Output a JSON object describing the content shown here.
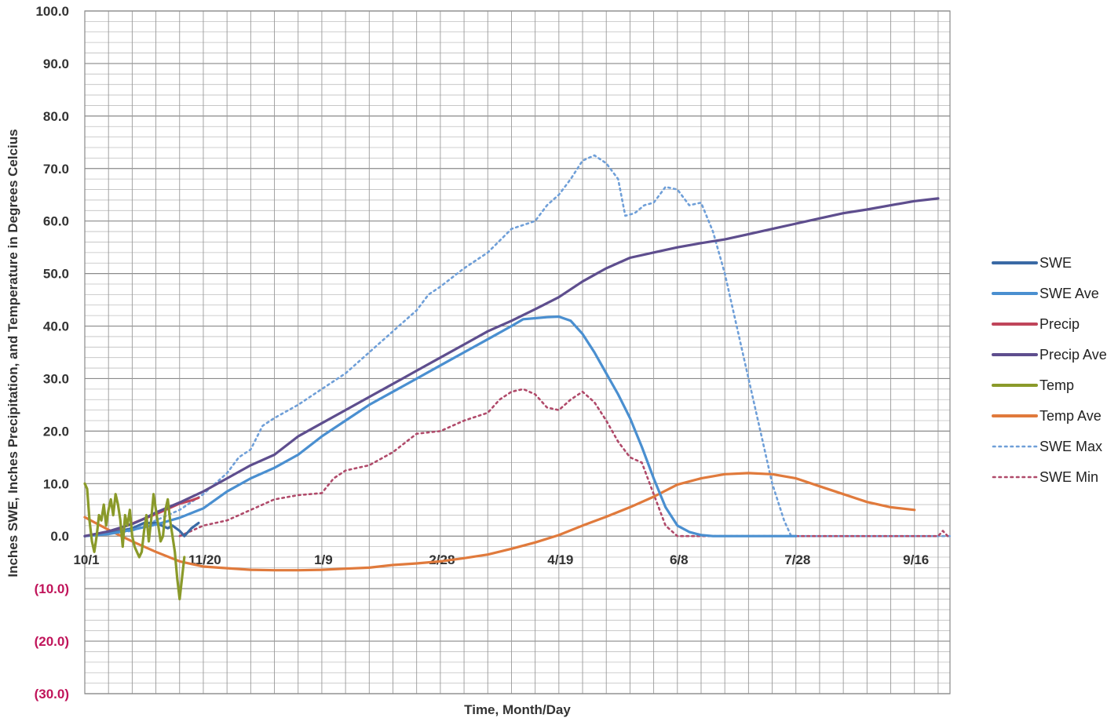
{
  "chart_data": {
    "type": "line",
    "title": "",
    "xlabel": "Time, Month/Day",
    "ylabel": "Inches SWE, Inches Precipitation, and Temperature in Degrees Celcius",
    "ylim": [
      -30,
      100
    ],
    "xlim_days": [
      0,
      365
    ],
    "grid": true,
    "legend_position": "right",
    "y_ticks": [
      {
        "value": 100,
        "label": "100.0"
      },
      {
        "value": 90,
        "label": "90.0"
      },
      {
        "value": 80,
        "label": "80.0"
      },
      {
        "value": 70,
        "label": "70.0"
      },
      {
        "value": 60,
        "label": "60.0"
      },
      {
        "value": 50,
        "label": "50.0"
      },
      {
        "value": 40,
        "label": "40.0"
      },
      {
        "value": 30,
        "label": "30.0"
      },
      {
        "value": 20,
        "label": "20.0"
      },
      {
        "value": 10,
        "label": "10.0"
      },
      {
        "value": 0,
        "label": "0.0"
      },
      {
        "value": -10,
        "label": "(10.0)"
      },
      {
        "value": -20,
        "label": "(20.0)"
      },
      {
        "value": -30,
        "label": "(30.0)"
      }
    ],
    "x_ticks": [
      {
        "day": 0,
        "label": "10/1"
      },
      {
        "day": 50,
        "label": "11/20"
      },
      {
        "day": 100,
        "label": "1/9"
      },
      {
        "day": 150,
        "label": "2/28"
      },
      {
        "day": 200,
        "label": "4/19"
      },
      {
        "day": 250,
        "label": "6/8"
      },
      {
        "day": 300,
        "label": "7/28"
      },
      {
        "day": 350,
        "label": "9/16"
      }
    ],
    "series": [
      {
        "name": "SWE",
        "color": "#3a6aa5",
        "dash": "solid",
        "points": [
          [
            0,
            0
          ],
          [
            5,
            0.3
          ],
          [
            10,
            0.5
          ],
          [
            15,
            1
          ],
          [
            20,
            1.5
          ],
          [
            25,
            2.5
          ],
          [
            30,
            2.5
          ],
          [
            35,
            1.5
          ],
          [
            37,
            2
          ],
          [
            40,
            1
          ],
          [
            42,
            0
          ],
          [
            45,
            1.5
          ],
          [
            48,
            2.5
          ]
        ]
      },
      {
        "name": "SWE Ave",
        "color": "#4a8fd0",
        "dash": "solid",
        "points": [
          [
            0,
            0
          ],
          [
            10,
            0.4
          ],
          [
            20,
            1.2
          ],
          [
            30,
            2.2
          ],
          [
            40,
            3.5
          ],
          [
            50,
            5.3
          ],
          [
            60,
            8.5
          ],
          [
            70,
            11
          ],
          [
            80,
            13
          ],
          [
            90,
            15.5
          ],
          [
            100,
            19
          ],
          [
            110,
            22
          ],
          [
            120,
            25
          ],
          [
            130,
            27.5
          ],
          [
            140,
            30
          ],
          [
            150,
            32.5
          ],
          [
            160,
            35
          ],
          [
            170,
            37.5
          ],
          [
            180,
            40
          ],
          [
            185,
            41.3
          ],
          [
            190,
            41.5
          ],
          [
            195,
            41.7
          ],
          [
            200,
            41.8
          ],
          [
            205,
            41
          ],
          [
            210,
            38.5
          ],
          [
            215,
            35
          ],
          [
            220,
            31
          ],
          [
            225,
            27
          ],
          [
            230,
            22.5
          ],
          [
            235,
            17
          ],
          [
            240,
            11
          ],
          [
            245,
            5.5
          ],
          [
            250,
            2
          ],
          [
            255,
            0.8
          ],
          [
            260,
            0.2
          ],
          [
            265,
            0
          ],
          [
            300,
            0
          ]
        ],
        "x_offset": 0
      },
      {
        "name": "Precip",
        "color": "#c0455a",
        "dash": "solid",
        "points": [
          [
            0,
            0
          ],
          [
            5,
            0.4
          ],
          [
            10,
            0.9
          ],
          [
            15,
            1.5
          ],
          [
            20,
            2.4
          ],
          [
            25,
            3.3
          ],
          [
            30,
            4.2
          ],
          [
            35,
            5.2
          ],
          [
            40,
            6.2
          ],
          [
            45,
            6.8
          ],
          [
            48,
            7.3
          ]
        ]
      },
      {
        "name": "Precip Ave",
        "color": "#5e4e8e",
        "dash": "solid",
        "points": [
          [
            0,
            0
          ],
          [
            10,
            0.9
          ],
          [
            20,
            2.3
          ],
          [
            25,
            3.3
          ],
          [
            30,
            4.5
          ],
          [
            40,
            6.4
          ],
          [
            50,
            8.5
          ],
          [
            60,
            11
          ],
          [
            70,
            13.5
          ],
          [
            80,
            15.5
          ],
          [
            90,
            19
          ],
          [
            100,
            21.5
          ],
          [
            110,
            24
          ],
          [
            120,
            26.5
          ],
          [
            130,
            29
          ],
          [
            140,
            31.5
          ],
          [
            150,
            34
          ],
          [
            160,
            36.5
          ],
          [
            170,
            39
          ],
          [
            180,
            41
          ],
          [
            190,
            43.2
          ],
          [
            200,
            45.5
          ],
          [
            210,
            48.5
          ],
          [
            220,
            51
          ],
          [
            230,
            53
          ],
          [
            240,
            54
          ],
          [
            250,
            55
          ],
          [
            260,
            55.8
          ],
          [
            270,
            56.5
          ],
          [
            280,
            57.5
          ],
          [
            290,
            58.5
          ],
          [
            300,
            59.5
          ],
          [
            310,
            60.5
          ],
          [
            320,
            61.5
          ],
          [
            330,
            62.2
          ],
          [
            340,
            63
          ],
          [
            350,
            63.8
          ],
          [
            360,
            64.3
          ]
        ]
      },
      {
        "name": "Temp",
        "color": "#8a9a2a",
        "dash": "solid",
        "points": [
          [
            0,
            10
          ],
          [
            1,
            9
          ],
          [
            2,
            3
          ],
          [
            3,
            -1
          ],
          [
            4,
            -3
          ],
          [
            5,
            0
          ],
          [
            6,
            4
          ],
          [
            7,
            3
          ],
          [
            8,
            6
          ],
          [
            9,
            2
          ],
          [
            10,
            5
          ],
          [
            11,
            7
          ],
          [
            12,
            4
          ],
          [
            13,
            8
          ],
          [
            14,
            6
          ],
          [
            15,
            3
          ],
          [
            16,
            -2
          ],
          [
            17,
            4
          ],
          [
            18,
            2
          ],
          [
            19,
            5
          ],
          [
            20,
            0
          ],
          [
            21,
            -2
          ],
          [
            22,
            -3
          ],
          [
            23,
            -4
          ],
          [
            24,
            -3
          ],
          [
            25,
            1
          ],
          [
            26,
            4
          ],
          [
            27,
            -1
          ],
          [
            28,
            3
          ],
          [
            29,
            8
          ],
          [
            30,
            5
          ],
          [
            31,
            2
          ],
          [
            32,
            -1
          ],
          [
            33,
            0
          ],
          [
            34,
            5
          ],
          [
            35,
            7
          ],
          [
            36,
            3
          ],
          [
            37,
            0
          ],
          [
            38,
            -3
          ],
          [
            39,
            -8
          ],
          [
            40,
            -12
          ],
          [
            41,
            -8
          ],
          [
            42,
            -4
          ]
        ]
      },
      {
        "name": "Temp Ave",
        "color": "#e07a3c",
        "dash": "solid",
        "points": [
          [
            0,
            3.6
          ],
          [
            10,
            1.2
          ],
          [
            20,
            -1
          ],
          [
            30,
            -3
          ],
          [
            40,
            -4.8
          ],
          [
            50,
            -5.8
          ],
          [
            60,
            -6.1
          ],
          [
            70,
            -6.4
          ],
          [
            80,
            -6.5
          ],
          [
            90,
            -6.5
          ],
          [
            100,
            -6.4
          ],
          [
            110,
            -6.2
          ],
          [
            120,
            -6
          ],
          [
            130,
            -5.5
          ],
          [
            140,
            -5.2
          ],
          [
            150,
            -4.8
          ],
          [
            160,
            -4.2
          ],
          [
            170,
            -3.5
          ],
          [
            180,
            -2.4
          ],
          [
            190,
            -1.2
          ],
          [
            200,
            0.2
          ],
          [
            210,
            2
          ],
          [
            220,
            3.7
          ],
          [
            230,
            5.5
          ],
          [
            240,
            7.5
          ],
          [
            250,
            9.8
          ],
          [
            260,
            11
          ],
          [
            270,
            11.8
          ],
          [
            280,
            12
          ],
          [
            290,
            11.8
          ],
          [
            300,
            11
          ],
          [
            310,
            9.5
          ],
          [
            320,
            8
          ],
          [
            330,
            6.5
          ],
          [
            340,
            5.5
          ],
          [
            350,
            5
          ]
        ],
        "x_offset_days": 0
      },
      {
        "name": "SWE Max",
        "color": "#6f9fd8",
        "dash": "dotted",
        "points": [
          [
            0,
            0
          ],
          [
            20,
            1
          ],
          [
            40,
            5
          ],
          [
            50,
            8
          ],
          [
            60,
            12
          ],
          [
            65,
            15
          ],
          [
            70,
            16.5
          ],
          [
            75,
            21
          ],
          [
            80,
            22.5
          ],
          [
            90,
            25
          ],
          [
            100,
            28
          ],
          [
            110,
            31
          ],
          [
            115,
            33
          ],
          [
            120,
            35
          ],
          [
            125,
            37
          ],
          [
            130,
            39
          ],
          [
            135,
            41
          ],
          [
            140,
            43
          ],
          [
            145,
            46
          ],
          [
            150,
            47.5
          ],
          [
            160,
            51
          ],
          [
            170,
            54
          ],
          [
            180,
            58.5
          ],
          [
            190,
            60
          ],
          [
            195,
            63
          ],
          [
            200,
            65
          ],
          [
            205,
            68
          ],
          [
            210,
            71.5
          ],
          [
            215,
            72.5
          ],
          [
            220,
            71
          ],
          [
            225,
            68
          ],
          [
            228,
            61
          ],
          [
            232,
            61.5
          ],
          [
            236,
            63
          ],
          [
            240,
            63.5
          ],
          [
            245,
            66.5
          ],
          [
            250,
            66
          ],
          [
            255,
            63
          ],
          [
            260,
            63.5
          ],
          [
            265,
            58
          ],
          [
            270,
            50
          ],
          [
            275,
            40
          ],
          [
            280,
            30
          ],
          [
            285,
            20
          ],
          [
            290,
            10
          ],
          [
            295,
            3
          ],
          [
            298,
            0
          ],
          [
            365,
            0
          ]
        ]
      },
      {
        "name": "SWE Min",
        "color": "#b04a6a",
        "dash": "dotted",
        "points": [
          [
            40,
            0
          ],
          [
            45,
            1
          ],
          [
            50,
            2
          ],
          [
            60,
            3
          ],
          [
            70,
            5
          ],
          [
            80,
            7
          ],
          [
            90,
            7.8
          ],
          [
            100,
            8.2
          ],
          [
            105,
            11
          ],
          [
            110,
            12.5
          ],
          [
            120,
            13.5
          ],
          [
            130,
            16
          ],
          [
            140,
            19.5
          ],
          [
            150,
            20
          ],
          [
            160,
            22
          ],
          [
            170,
            23.5
          ],
          [
            175,
            26
          ],
          [
            180,
            27.5
          ],
          [
            185,
            28
          ],
          [
            190,
            27
          ],
          [
            195,
            24.5
          ],
          [
            200,
            24
          ],
          [
            205,
            26
          ],
          [
            210,
            27.5
          ],
          [
            215,
            25.5
          ],
          [
            220,
            22
          ],
          [
            225,
            18
          ],
          [
            230,
            15
          ],
          [
            235,
            14
          ],
          [
            240,
            8
          ],
          [
            245,
            2
          ],
          [
            250,
            0
          ],
          [
            360,
            0
          ],
          [
            362,
            1
          ],
          [
            364,
            0
          ]
        ]
      }
    ],
    "legend_entries": [
      "SWE",
      "SWE Ave",
      "Precip",
      "Precip Ave",
      "Temp",
      "Temp Ave",
      "SWE Max",
      "SWE Min"
    ]
  }
}
